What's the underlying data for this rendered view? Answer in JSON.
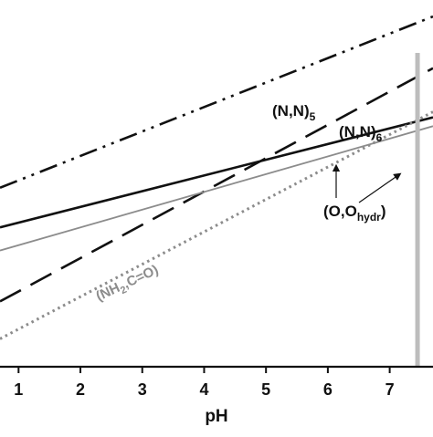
{
  "chart_data": {
    "type": "line",
    "xlabel": "pH",
    "ylabel": "",
    "xlim": [
      0.7,
      7.7
    ],
    "ylim": [
      0,
      10
    ],
    "x_ticks": [
      1,
      2,
      3,
      4,
      5,
      6,
      7
    ],
    "x_tick_labels": [
      "1",
      "2",
      "3",
      "4",
      "5",
      "6",
      "7"
    ],
    "series": [
      {
        "name": "(N,N)5",
        "label_main": "(N,N)",
        "label_sub": "5",
        "style": "dash-dot-dot",
        "color": "#111111",
        "x": [
          0.7,
          7.7
        ],
        "y": [
          4.88,
          9.55
        ]
      },
      {
        "name": "(N,N)6",
        "label_main": "(N,N)",
        "label_sub": "6",
        "style": "long-dash",
        "color": "#111111",
        "x": [
          0.7,
          7.7
        ],
        "y": [
          1.78,
          8.14
        ]
      },
      {
        "name": "solid",
        "label_main": "",
        "label_sub": "",
        "style": "solid",
        "color": "#111111",
        "x": [
          0.7,
          7.7
        ],
        "y": [
          3.8,
          6.8
        ]
      },
      {
        "name": "(O,Ohydr)",
        "label_main": "(O,O",
        "label_sub": "hydr",
        "label_end": ")",
        "style": "solid",
        "color": "#8c8c8c",
        "x": [
          0.7,
          7.7
        ],
        "y": [
          3.17,
          6.56
        ]
      },
      {
        "name": "(NH2,C=O)",
        "label_main": "(NH",
        "label_sub": "2",
        "label_end": ",C=O)",
        "style": "dotted",
        "color": "#8c8c8c",
        "x": [
          0.7,
          7.7
        ],
        "y": [
          0.76,
          6.95
        ]
      }
    ],
    "vertical_line": {
      "x": 7.45,
      "color": "#bdbdbd"
    },
    "annotations": {
      "nn5_label": {
        "main": "(N,N)",
        "sub": "5"
      },
      "nn6_label": {
        "main": "(N,N)",
        "sub": "6"
      },
      "oo_label": {
        "main": "(O,O",
        "sub": "hydr",
        "end": ")"
      },
      "nh2_label": {
        "main": "(NH",
        "sub": "2",
        "end": ",C=O)"
      }
    }
  }
}
